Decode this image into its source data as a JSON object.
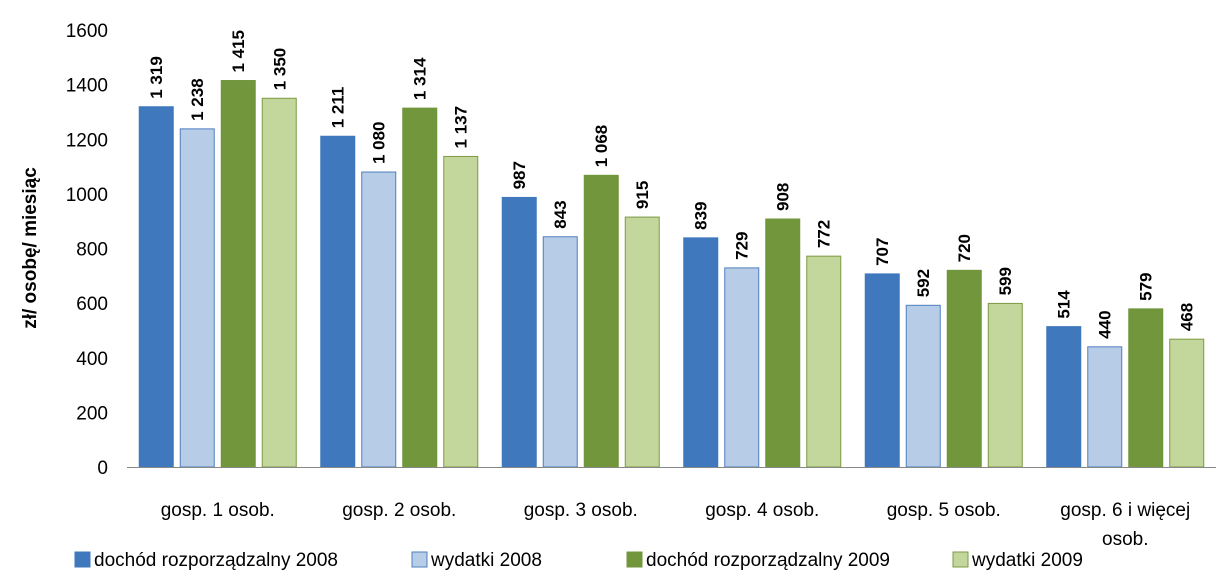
{
  "chart_data": {
    "type": "bar",
    "title": "",
    "xlabel": "",
    "ylabel": "zł/ osobę/ miesiąc",
    "ylim": [
      0,
      1600
    ],
    "yticks": [
      0,
      200,
      400,
      600,
      800,
      1000,
      1200,
      1400,
      1600
    ],
    "grid": false,
    "legend_position": "bottom",
    "categories": [
      [
        "gosp. 1 osob."
      ],
      [
        "gosp. 2 osob."
      ],
      [
        "gosp. 3 osob."
      ],
      [
        "gosp. 4 osob."
      ],
      [
        "gosp. 5 osob."
      ],
      [
        "gosp. 6 i więcej",
        "osob."
      ]
    ],
    "series": [
      {
        "name": "dochód rozporządzalny 2008",
        "color": "#3F78BC",
        "stroke": "#3F78BC",
        "values": [
          1319,
          1211,
          987,
          839,
          707,
          514
        ],
        "labels": [
          "1 319",
          "1 211",
          "987",
          "839",
          "707",
          "514"
        ]
      },
      {
        "name": "wydatki 2008",
        "color": "#B7CCE6",
        "stroke": "#4F7FBF",
        "values": [
          1238,
          1080,
          843,
          729,
          592,
          440
        ],
        "labels": [
          "1 238",
          "1 080",
          "843",
          "729",
          "592",
          "440"
        ]
      },
      {
        "name": "dochód rozporządzalny 2009",
        "color": "#71963C",
        "stroke": "#71963C",
        "values": [
          1415,
          1314,
          1068,
          908,
          720,
          579
        ],
        "labels": [
          "1 415",
          "1 314",
          "1 068",
          "908",
          "720",
          "579"
        ]
      },
      {
        "name": "wydatki 2009",
        "color": "#C3D69B",
        "stroke": "#7C9A43",
        "values": [
          1350,
          1137,
          915,
          772,
          599,
          468
        ],
        "labels": [
          "1 350",
          "1 137",
          "915",
          "772",
          "599",
          "468"
        ]
      }
    ]
  }
}
